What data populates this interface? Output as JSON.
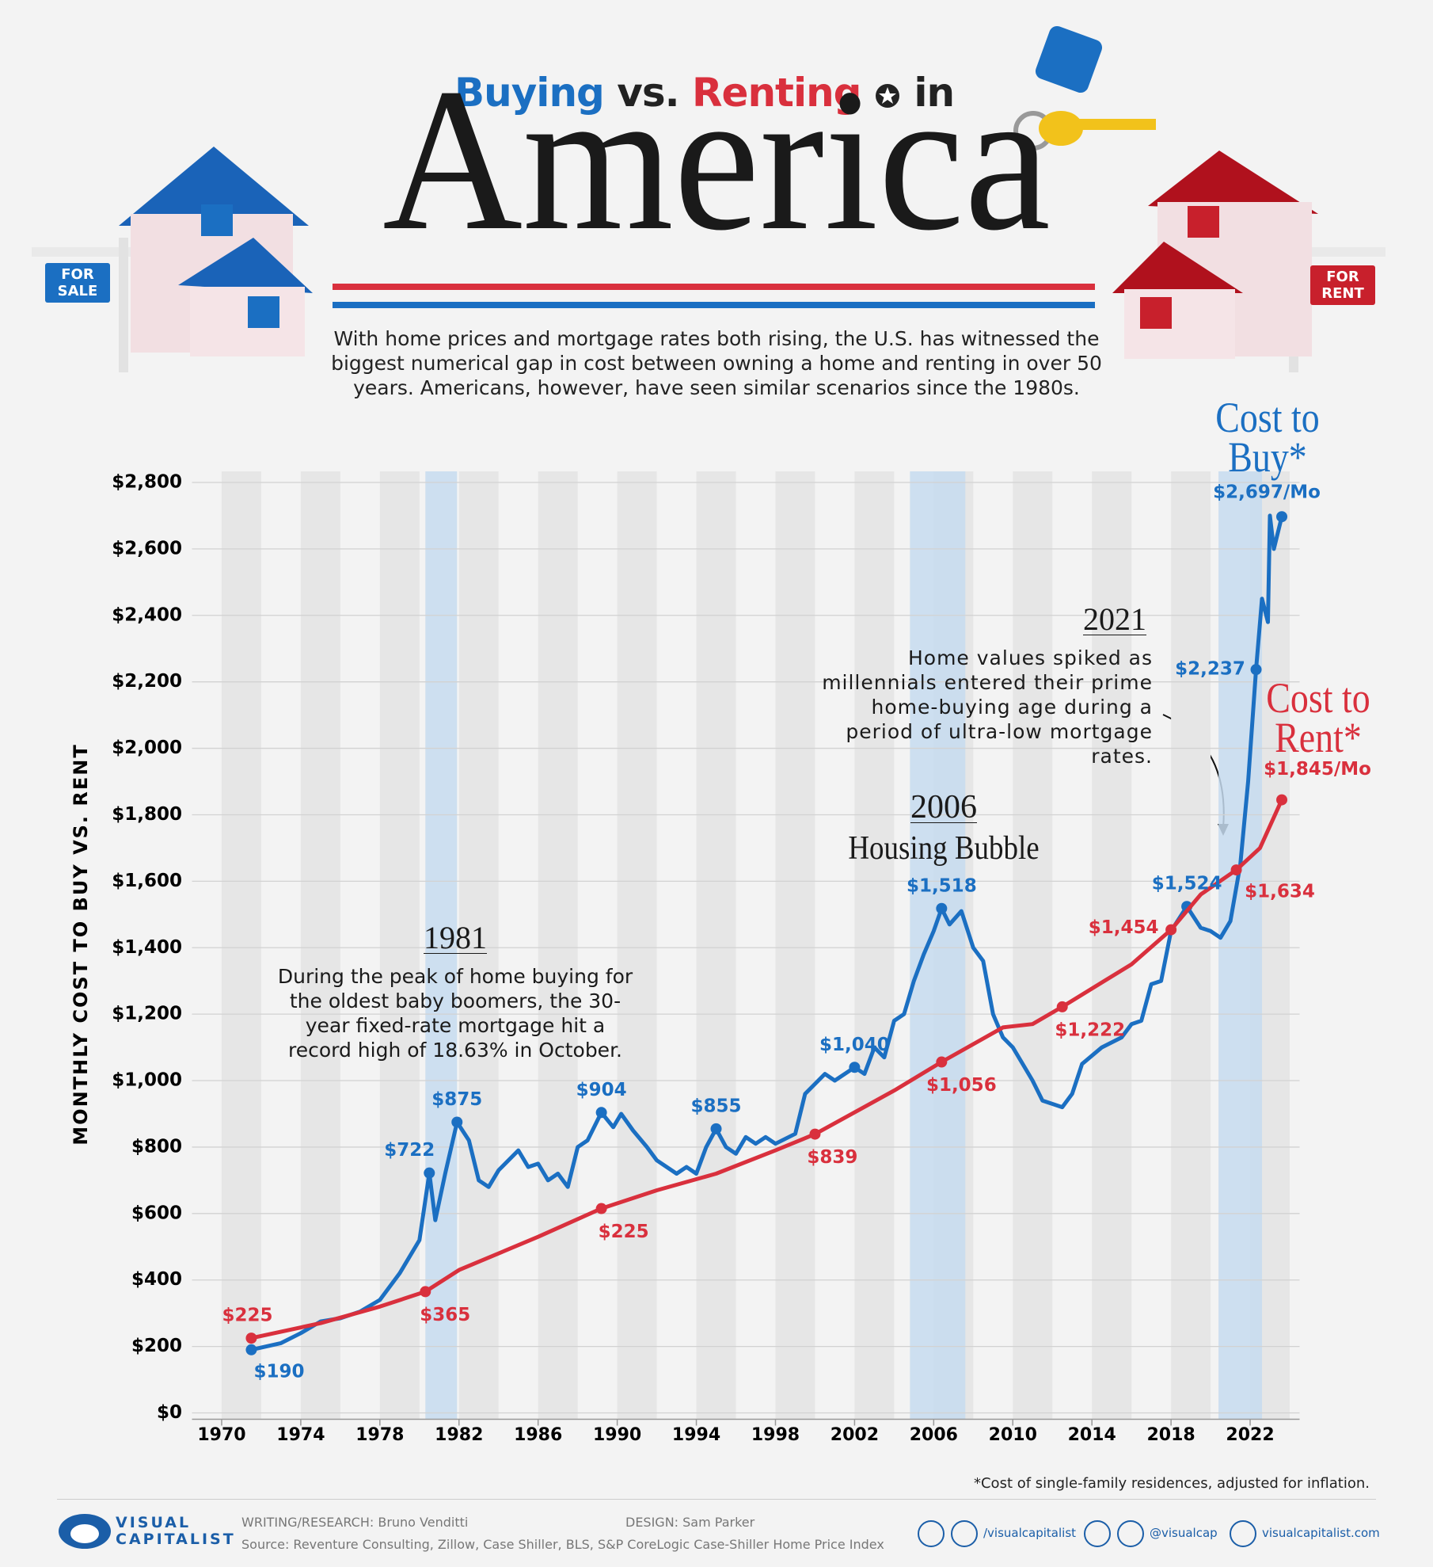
{
  "header": {
    "title_parts": [
      "Buying",
      "vs.",
      "Renting",
      "in"
    ],
    "title_main": "America",
    "subtitle": "With home prices and mortgage rates both rising, the U.S. has witnessed the biggest numerical gap in cost between owning a home and renting in over 50 years. Americans, however, have seen similar scenarios since the 1980s.",
    "signs": [
      "FOR SALE",
      "FOR RENT"
    ]
  },
  "chart_data": {
    "type": "line",
    "y_label": "MONTHLY COST TO BUY VS. RENT",
    "xlim": [
      1968.5,
      2024.5
    ],
    "xticks": [
      1970,
      1974,
      1978,
      1982,
      1986,
      1990,
      1994,
      1998,
      2002,
      2006,
      2010,
      2014,
      2018,
      2022
    ],
    "ylim": [
      0,
      2800
    ],
    "yticks": [
      {
        "value": 0,
        "label": "$0"
      },
      {
        "value": 200,
        "label": "$200"
      },
      {
        "value": 400,
        "label": "$400"
      },
      {
        "value": 600,
        "label": "$600"
      },
      {
        "value": 800,
        "label": "$800"
      },
      {
        "value": 1000,
        "label": "$1,000"
      },
      {
        "value": 1200,
        "label": "$1,200"
      },
      {
        "value": 1400,
        "label": "$1,400"
      },
      {
        "value": 1600,
        "label": "$1,600"
      },
      {
        "value": 1800,
        "label": "$1,800"
      },
      {
        "value": 2000,
        "label": "$2,000"
      },
      {
        "value": 2200,
        "label": "$2,200"
      },
      {
        "value": 2400,
        "label": "$2,400"
      },
      {
        "value": 2600,
        "label": "$2,600"
      },
      {
        "value": 2800,
        "label": "$2,800"
      }
    ],
    "grid": true,
    "highlight_ranges": [
      [
        1980.3,
        1981.9
      ],
      [
        2004.8,
        2007.6
      ],
      [
        2020.4,
        2022.6
      ]
    ],
    "series": [
      {
        "name": "Cost to Buy*",
        "color": "#1b6fc2",
        "x": [
          1971.5,
          1973,
          1974,
          1975,
          1976,
          1977,
          1978,
          1979,
          1980,
          1980.5,
          1980.8,
          1981.3,
          1981.9,
          1982.5,
          1983,
          1983.5,
          1984,
          1985,
          1985.5,
          1986,
          1986.5,
          1987,
          1987.5,
          1988,
          1988.5,
          1989.2,
          1989.8,
          1990.2,
          1990.8,
          1991.5,
          1992,
          1993,
          1993.5,
          1994,
          1994.5,
          1995,
          1995.5,
          1996,
          1996.5,
          1997,
          1997.5,
          1998,
          1999,
          1999.5,
          2000.5,
          2001,
          2002,
          2002.5,
          2003,
          2003.5,
          2004,
          2004.5,
          2005,
          2005.5,
          2006,
          2006.4,
          2006.8,
          2007.4,
          2008,
          2008.5,
          2009,
          2009.5,
          2010,
          2010.5,
          2011,
          2011.5,
          2012.5,
          2013,
          2013.5,
          2014.5,
          2015.5,
          2016,
          2016.5,
          2017,
          2017.5,
          2018,
          2018.8,
          2019.5,
          2020,
          2020.5,
          2021,
          2021.5,
          2021.9,
          2022.3,
          2022.6,
          2022.9,
          2023,
          2023.2,
          2023.6
        ],
        "values": [
          190,
          210,
          240,
          275,
          285,
          305,
          340,
          420,
          520,
          722,
          580,
          720,
          875,
          820,
          700,
          680,
          730,
          790,
          740,
          750,
          700,
          720,
          680,
          800,
          820,
          904,
          860,
          900,
          850,
          800,
          760,
          720,
          740,
          720,
          800,
          855,
          800,
          780,
          830,
          810,
          830,
          810,
          840,
          960,
          1020,
          1000,
          1040,
          1020,
          1100,
          1070,
          1180,
          1200,
          1300,
          1380,
          1450,
          1518,
          1470,
          1510,
          1400,
          1360,
          1200,
          1130,
          1100,
          1050,
          1000,
          940,
          920,
          960,
          1050,
          1100,
          1130,
          1170,
          1180,
          1290,
          1300,
          1450,
          1524,
          1460,
          1450,
          1430,
          1480,
          1650,
          1900,
          2237,
          2450,
          2380,
          2700,
          2600,
          2697
        ],
        "value_labels": [
          "$190",
          null,
          null,
          null,
          null,
          null,
          null,
          null,
          null,
          "$722",
          null,
          null,
          "$875",
          null,
          null,
          null,
          null,
          null,
          null,
          null,
          null,
          null,
          null,
          null,
          null,
          "$904",
          null,
          null,
          null,
          null,
          null,
          null,
          null,
          null,
          null,
          "$855",
          null,
          null,
          null,
          null,
          null,
          null,
          null,
          null,
          null,
          null,
          "$1,040",
          null,
          null,
          null,
          null,
          null,
          null,
          null,
          null,
          "$1,518",
          null,
          null,
          null,
          null,
          null,
          null,
          null,
          null,
          null,
          null,
          null,
          null,
          null,
          null,
          null,
          null,
          null,
          null,
          null,
          null,
          "$1,524",
          null,
          null,
          null,
          null,
          null,
          null,
          "$2,237",
          null,
          null,
          null,
          null,
          "$2,697/Mo"
        ]
      },
      {
        "name": "Cost to Rent*",
        "color": "#d9303d",
        "x": [
          1971.5,
          1975,
          1978,
          1980.3,
          1982,
          1986,
          1989.2,
          1992,
          1995,
          1998,
          2000,
          2004,
          2006.4,
          2009.5,
          2011,
          2012.5,
          2016,
          2018,
          2019.5,
          2021.3,
          2022.5,
          2023.6
        ],
        "values": [
          225,
          270,
          320,
          365,
          430,
          530,
          615,
          670,
          720,
          790,
          839,
          970,
          1056,
          1160,
          1170,
          1222,
          1350,
          1454,
          1560,
          1634,
          1700,
          1845
        ],
        "value_labels": [
          "$225",
          null,
          null,
          "$365",
          null,
          null,
          null,
          null,
          null,
          null,
          "$839",
          null,
          "$1,056",
          null,
          null,
          "$1,222",
          null,
          "$1,454",
          null,
          "$1,634",
          null,
          "$1,845/Mo"
        ]
      }
    ],
    "annotations": [
      {
        "title": "1981",
        "text": "During the peak of home buying for the oldest baby boomers, the 30-year fixed-rate mortgage hit a record high of 18.63% in October."
      },
      {
        "title": "2006",
        "text": "Housing Bubble"
      },
      {
        "title": "2021",
        "text": "Home values spiked as millennials entered their prime home-buying age during a period of ultra-low mortgage rates."
      },
      {
        "text": "$225"
      }
    ],
    "footnote": "*Cost of single-family residences, adjusted for inflation."
  },
  "footer": {
    "logo": [
      "VISUAL",
      "CAPITALIST"
    ],
    "research": "WRITING/RESEARCH: Bruno Venditti",
    "design": "DESIGN: Sam Parker",
    "source": "Source: Reventure Consulting, Zillow, Case Shiller, BLS,  S&P CoreLogic Case-Shiller Home Price Index",
    "social": [
      "/visualcapitalist",
      "@visualcap",
      "visualcapitalist.com"
    ]
  }
}
